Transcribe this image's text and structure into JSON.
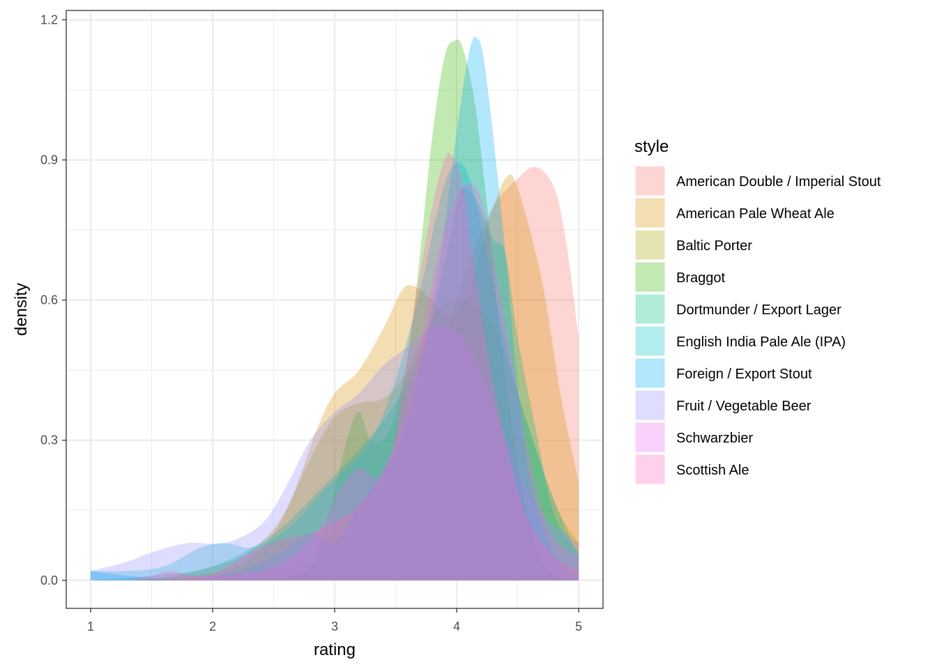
{
  "chart_data": {
    "type": "area",
    "subtype": "density",
    "xlabel": "rating",
    "ylabel": "density",
    "xlim": [
      0.8,
      5.2
    ],
    "ylim": [
      -0.06,
      1.22
    ],
    "x_ticks": [
      1,
      2,
      3,
      4,
      5
    ],
    "y_ticks": [
      0.0,
      0.3,
      0.6,
      0.9,
      1.2
    ],
    "y_tick_labels": [
      "0.0",
      "0.3",
      "0.6",
      "0.9",
      "1.2"
    ],
    "grid": true,
    "legend": {
      "title": "style",
      "position": "right"
    },
    "fill_opacity": 0.3,
    "series": [
      {
        "name": "American Double / Imperial Stout",
        "color": "#F8766D",
        "points": [
          [
            1.5,
            0
          ],
          [
            2.0,
            0.01
          ],
          [
            2.5,
            0.02
          ],
          [
            3.0,
            0.06
          ],
          [
            3.3,
            0.14
          ],
          [
            3.5,
            0.22
          ],
          [
            3.7,
            0.36
          ],
          [
            3.9,
            0.52
          ],
          [
            4.1,
            0.68
          ],
          [
            4.3,
            0.8
          ],
          [
            4.5,
            0.86
          ],
          [
            4.65,
            0.885
          ],
          [
            4.8,
            0.84
          ],
          [
            4.9,
            0.72
          ],
          [
            5.0,
            0.52
          ]
        ]
      },
      {
        "name": "American Pale Wheat Ale",
        "color": "#D89000",
        "points": [
          [
            1.4,
            0
          ],
          [
            1.7,
            0.01
          ],
          [
            2.0,
            0.03
          ],
          [
            2.3,
            0.06
          ],
          [
            2.6,
            0.15
          ],
          [
            2.85,
            0.32
          ],
          [
            3.0,
            0.4
          ],
          [
            3.2,
            0.45
          ],
          [
            3.4,
            0.54
          ],
          [
            3.55,
            0.62
          ],
          [
            3.65,
            0.63
          ],
          [
            3.8,
            0.6
          ],
          [
            3.95,
            0.56
          ],
          [
            4.1,
            0.62
          ],
          [
            4.25,
            0.76
          ],
          [
            4.4,
            0.86
          ],
          [
            4.5,
            0.84
          ],
          [
            4.7,
            0.64
          ],
          [
            4.85,
            0.4
          ],
          [
            5.0,
            0.21
          ]
        ]
      },
      {
        "name": "Baltic Porter",
        "color": "#A3A500",
        "points": [
          [
            1.3,
            0
          ],
          [
            1.8,
            0.01
          ],
          [
            2.2,
            0.03
          ],
          [
            2.5,
            0.1
          ],
          [
            2.8,
            0.26
          ],
          [
            3.0,
            0.35
          ],
          [
            3.2,
            0.38
          ],
          [
            3.4,
            0.39
          ],
          [
            3.6,
            0.45
          ],
          [
            3.8,
            0.56
          ],
          [
            3.95,
            0.6
          ],
          [
            4.05,
            0.6
          ],
          [
            4.2,
            0.58
          ],
          [
            4.35,
            0.52
          ],
          [
            4.5,
            0.4
          ],
          [
            4.7,
            0.24
          ],
          [
            4.85,
            0.14
          ],
          [
            5.0,
            0.08
          ]
        ]
      },
      {
        "name": "Braggot",
        "color": "#39B600",
        "points": [
          [
            2.5,
            0
          ],
          [
            2.8,
            0.03
          ],
          [
            2.95,
            0.14
          ],
          [
            3.1,
            0.3
          ],
          [
            3.2,
            0.36
          ],
          [
            3.3,
            0.3
          ],
          [
            3.45,
            0.32
          ],
          [
            3.6,
            0.48
          ],
          [
            3.7,
            0.7
          ],
          [
            3.8,
            0.95
          ],
          [
            3.9,
            1.12
          ],
          [
            3.98,
            1.155
          ],
          [
            4.05,
            1.14
          ],
          [
            4.15,
            1.02
          ],
          [
            4.25,
            0.8
          ],
          [
            4.35,
            0.55
          ],
          [
            4.5,
            0.25
          ],
          [
            4.65,
            0.07
          ],
          [
            4.8,
            0.01
          ],
          [
            5.0,
            0
          ]
        ]
      },
      {
        "name": "Dortmunder / Export Lager",
        "color": "#00BF7D",
        "points": [
          [
            1.0,
            0
          ],
          [
            1.5,
            0.01
          ],
          [
            2.0,
            0.03
          ],
          [
            2.5,
            0.1
          ],
          [
            2.9,
            0.2
          ],
          [
            3.2,
            0.28
          ],
          [
            3.5,
            0.38
          ],
          [
            3.75,
            0.52
          ],
          [
            3.9,
            0.68
          ],
          [
            4.0,
            0.8
          ],
          [
            4.05,
            0.84
          ],
          [
            4.15,
            0.82
          ],
          [
            4.3,
            0.73
          ],
          [
            4.4,
            0.7
          ],
          [
            4.5,
            0.52
          ],
          [
            4.65,
            0.32
          ],
          [
            4.8,
            0.14
          ],
          [
            5.0,
            0.06
          ]
        ]
      },
      {
        "name": "English India Pale Ale (IPA)",
        "color": "#00BFC4",
        "points": [
          [
            1.0,
            0.02
          ],
          [
            1.3,
            0.02
          ],
          [
            1.6,
            0.03
          ],
          [
            1.9,
            0.07
          ],
          [
            2.1,
            0.08
          ],
          [
            2.3,
            0.07
          ],
          [
            2.5,
            0.09
          ],
          [
            2.7,
            0.13
          ],
          [
            2.9,
            0.19
          ],
          [
            3.1,
            0.24
          ],
          [
            3.3,
            0.3
          ],
          [
            3.5,
            0.43
          ],
          [
            3.7,
            0.62
          ],
          [
            3.85,
            0.8
          ],
          [
            3.95,
            0.88
          ],
          [
            4.05,
            0.89
          ],
          [
            4.15,
            0.82
          ],
          [
            4.3,
            0.63
          ],
          [
            4.45,
            0.45
          ],
          [
            4.6,
            0.32
          ],
          [
            4.8,
            0.17
          ],
          [
            5.0,
            0.05
          ]
        ]
      },
      {
        "name": "Foreign / Export Stout",
        "color": "#00B0F6",
        "points": [
          [
            1.0,
            0.02
          ],
          [
            1.3,
            0.01
          ],
          [
            1.8,
            0.0
          ],
          [
            2.2,
            0.02
          ],
          [
            2.5,
            0.05
          ],
          [
            2.8,
            0.1
          ],
          [
            3.0,
            0.08
          ],
          [
            3.2,
            0.16
          ],
          [
            3.5,
            0.28
          ],
          [
            3.7,
            0.46
          ],
          [
            3.85,
            0.66
          ],
          [
            3.95,
            0.86
          ],
          [
            4.05,
            1.05
          ],
          [
            4.12,
            1.15
          ],
          [
            4.17,
            1.16
          ],
          [
            4.22,
            1.12
          ],
          [
            4.3,
            0.95
          ],
          [
            4.4,
            0.7
          ],
          [
            4.5,
            0.42
          ],
          [
            4.6,
            0.22
          ],
          [
            4.75,
            0.08
          ],
          [
            4.9,
            0.02
          ],
          [
            5.0,
            0.01
          ]
        ]
      },
      {
        "name": "Fruit / Vegetable Beer",
        "color": "#9590FF",
        "points": [
          [
            1.0,
            0.02
          ],
          [
            1.3,
            0.04
          ],
          [
            1.5,
            0.06
          ],
          [
            1.8,
            0.08
          ],
          [
            2.1,
            0.08
          ],
          [
            2.4,
            0.12
          ],
          [
            2.6,
            0.2
          ],
          [
            2.8,
            0.3
          ],
          [
            3.0,
            0.36
          ],
          [
            3.2,
            0.4
          ],
          [
            3.4,
            0.46
          ],
          [
            3.6,
            0.5
          ],
          [
            3.8,
            0.54
          ],
          [
            3.95,
            0.54
          ],
          [
            4.1,
            0.5
          ],
          [
            4.3,
            0.38
          ],
          [
            4.5,
            0.24
          ],
          [
            4.7,
            0.14
          ],
          [
            4.9,
            0.1
          ],
          [
            5.0,
            0.08
          ]
        ]
      },
      {
        "name": "Schwarzbier",
        "color": "#E76BF3",
        "points": [
          [
            1.6,
            0
          ],
          [
            2.0,
            0.01
          ],
          [
            2.4,
            0.02
          ],
          [
            2.7,
            0.06
          ],
          [
            2.9,
            0.12
          ],
          [
            3.05,
            0.2
          ],
          [
            3.2,
            0.24
          ],
          [
            3.35,
            0.22
          ],
          [
            3.5,
            0.3
          ],
          [
            3.7,
            0.5
          ],
          [
            3.85,
            0.7
          ],
          [
            4.0,
            0.82
          ],
          [
            4.12,
            0.85
          ],
          [
            4.22,
            0.8
          ],
          [
            4.35,
            0.62
          ],
          [
            4.5,
            0.4
          ],
          [
            4.65,
            0.2
          ],
          [
            4.8,
            0.09
          ],
          [
            5.0,
            0.05
          ]
        ]
      },
      {
        "name": "Scottish Ale",
        "color": "#FF62BC",
        "points": [
          [
            1.3,
            0
          ],
          [
            1.5,
            0.01
          ],
          [
            1.65,
            0.02
          ],
          [
            1.85,
            0.01
          ],
          [
            2.05,
            0.02
          ],
          [
            2.3,
            0.06
          ],
          [
            2.6,
            0.09
          ],
          [
            2.8,
            0.1
          ],
          [
            2.95,
            0.12
          ],
          [
            3.2,
            0.16
          ],
          [
            3.45,
            0.26
          ],
          [
            3.55,
            0.4
          ],
          [
            3.65,
            0.58
          ],
          [
            3.8,
            0.8
          ],
          [
            3.9,
            0.9
          ],
          [
            3.96,
            0.91
          ],
          [
            4.05,
            0.85
          ],
          [
            4.15,
            0.66
          ],
          [
            4.3,
            0.42
          ],
          [
            4.45,
            0.24
          ],
          [
            4.6,
            0.12
          ],
          [
            4.8,
            0.05
          ],
          [
            5.0,
            0.02
          ]
        ]
      }
    ]
  }
}
